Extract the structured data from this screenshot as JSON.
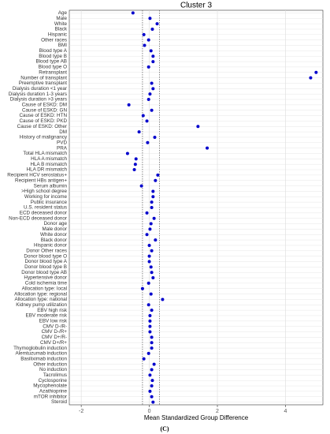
{
  "chart_data": {
    "type": "dot",
    "title": "Cluster 3",
    "x_label": "Mean Standardized Group Difference",
    "caption": "(C)",
    "categories": [
      "Age",
      "Male",
      "White",
      "Black",
      "Hispanic",
      "Other races",
      "BMI",
      "Blood type A",
      "Blood type B",
      "Blood type AB",
      "Blood type O",
      "Retransplant",
      "Number of transplant",
      "Preemptive transplant",
      "Dialysis duration <1 year",
      "Dialysis duration 1-3 years",
      "Dialysis duration >3 years",
      "Cause of ESKD: DM",
      "Cause of ESKD: GN",
      "Cause of ESKD: HTN",
      "Cause of ESKD: PKD",
      "Cause of ESKD: Other",
      "DM",
      "History of malignancy",
      "PVD",
      "PRA",
      "Total HLA mismatch",
      "HLA A mismatch",
      "HLA B mismatch",
      "HLA DR mismatch",
      "Recipient HCV serostatus+",
      "Recipient HBs antigen+",
      "Serum albumin",
      ">High school degree",
      "Working for income",
      "Public insurance",
      "U.S. resident status",
      "ECD deceased donor",
      "Non-ECD deceased donor",
      "Donor age",
      "Male donor",
      "White donor",
      "Black donor",
      "Hispanic donor",
      "Donor Other races",
      "Donor blood type O",
      "Donor blood type A",
      "Donor blood type B",
      "Donor blood type AB",
      "Hypertensive donor",
      "Cold ischemia time",
      "Allocation type: local",
      "Allocation type: regional",
      "Allocation type: national",
      "Kidney pump utilization",
      "EBV high risk",
      "EBV moderate risk",
      "EBV low risk",
      "CMV D-/R-",
      "CMV D-/R+",
      "CMV D+/R-",
      "CMV D+/R+",
      "Thymoglobulin induction",
      "Alemtuzumab induction",
      "Basiliximab induction",
      "Other induction",
      "No induction",
      "Tacrolimus",
      "Cyclosporine",
      "Mycophenolate",
      "Azathioprine",
      "mTOR inhibitor",
      "Steroid"
    ],
    "values": [
      -0.48,
      0.02,
      0.23,
      0.09,
      -0.16,
      -0.02,
      -0.14,
      0.05,
      0.11,
      0.11,
      -0.02,
      4.9,
      4.74,
      0.07,
      0.11,
      0.02,
      -0.02,
      -0.6,
      0.07,
      -0.18,
      -0.07,
      1.43,
      -0.3,
      0.16,
      -0.05,
      1.7,
      -0.64,
      -0.39,
      -0.41,
      -0.44,
      0.25,
      0.18,
      -0.23,
      0.11,
      0.11,
      0.07,
      0.07,
      -0.07,
      0.14,
      0.05,
      0.02,
      -0.07,
      0.18,
      0,
      0.07,
      0,
      0,
      0.05,
      0.07,
      0.11,
      -0.02,
      -0.2,
      0.05,
      0.39,
      -0.02,
      0.07,
      0.02,
      0.02,
      0.02,
      0.02,
      0.07,
      0.07,
      0.07,
      -0.02,
      -0.16,
      0.14,
      0.07,
      0.02,
      0.09,
      0.07,
      0.02,
      0.07,
      0.11
    ],
    "color": "#0000cc",
    "xlim": [
      -2.35,
      5.1
    ],
    "xticks": [
      -2,
      0,
      2,
      4
    ],
    "reference_lines": [
      -0.2,
      0.3
    ],
    "grid": true
  }
}
